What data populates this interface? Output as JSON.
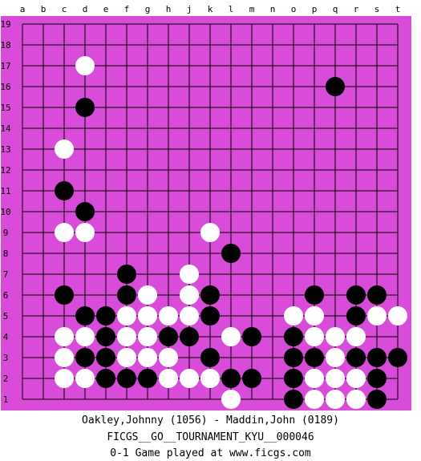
{
  "board": {
    "size": 19,
    "background_color": "#d94bd9",
    "line_color": "#000000",
    "column_labels": [
      "a",
      "b",
      "c",
      "d",
      "e",
      "f",
      "g",
      "h",
      "j",
      "k",
      "l",
      "m",
      "n",
      "o",
      "p",
      "q",
      "r",
      "s",
      "t"
    ],
    "row_labels": [
      "19",
      "18",
      "17",
      "16",
      "15",
      "14",
      "13",
      "12",
      "11",
      "10",
      "9",
      "8",
      "7",
      "6",
      "5",
      "4",
      "3",
      "2",
      "1"
    ],
    "black_stones": [
      "q16",
      "d15",
      "c11",
      "d10",
      "l8",
      "f7",
      "c6",
      "f6",
      "k6",
      "p6",
      "r6",
      "s6",
      "d5",
      "e5",
      "k5",
      "r5",
      "e4",
      "h4",
      "j4",
      "m4",
      "o4",
      "d3",
      "e3",
      "k3",
      "o3",
      "p3",
      "r3",
      "s3",
      "t3",
      "e2",
      "f2",
      "g2",
      "l2",
      "m2",
      "o2",
      "s2",
      "o1",
      "s1"
    ],
    "white_stones": [
      "d17",
      "c13",
      "c9",
      "d9",
      "k9",
      "j7",
      "g6",
      "j6",
      "f5",
      "g5",
      "h5",
      "j5",
      "o5",
      "p5",
      "s5",
      "t5",
      "c4",
      "d4",
      "f4",
      "g4",
      "l4",
      "p4",
      "q4",
      "r4",
      "c3",
      "f3",
      "g3",
      "h3",
      "q3",
      "c2",
      "d2",
      "h2",
      "j2",
      "k2",
      "p2",
      "q2",
      "r2",
      "l1",
      "p1",
      "q1",
      "r1"
    ]
  },
  "captions": {
    "players": "Oakley,Johnny (1056) - Maddin,John (0189)",
    "event": "FICGS__GO__TOURNAMENT_KYU__000046",
    "result": "0-1   Game played at www.ficgs.com"
  }
}
